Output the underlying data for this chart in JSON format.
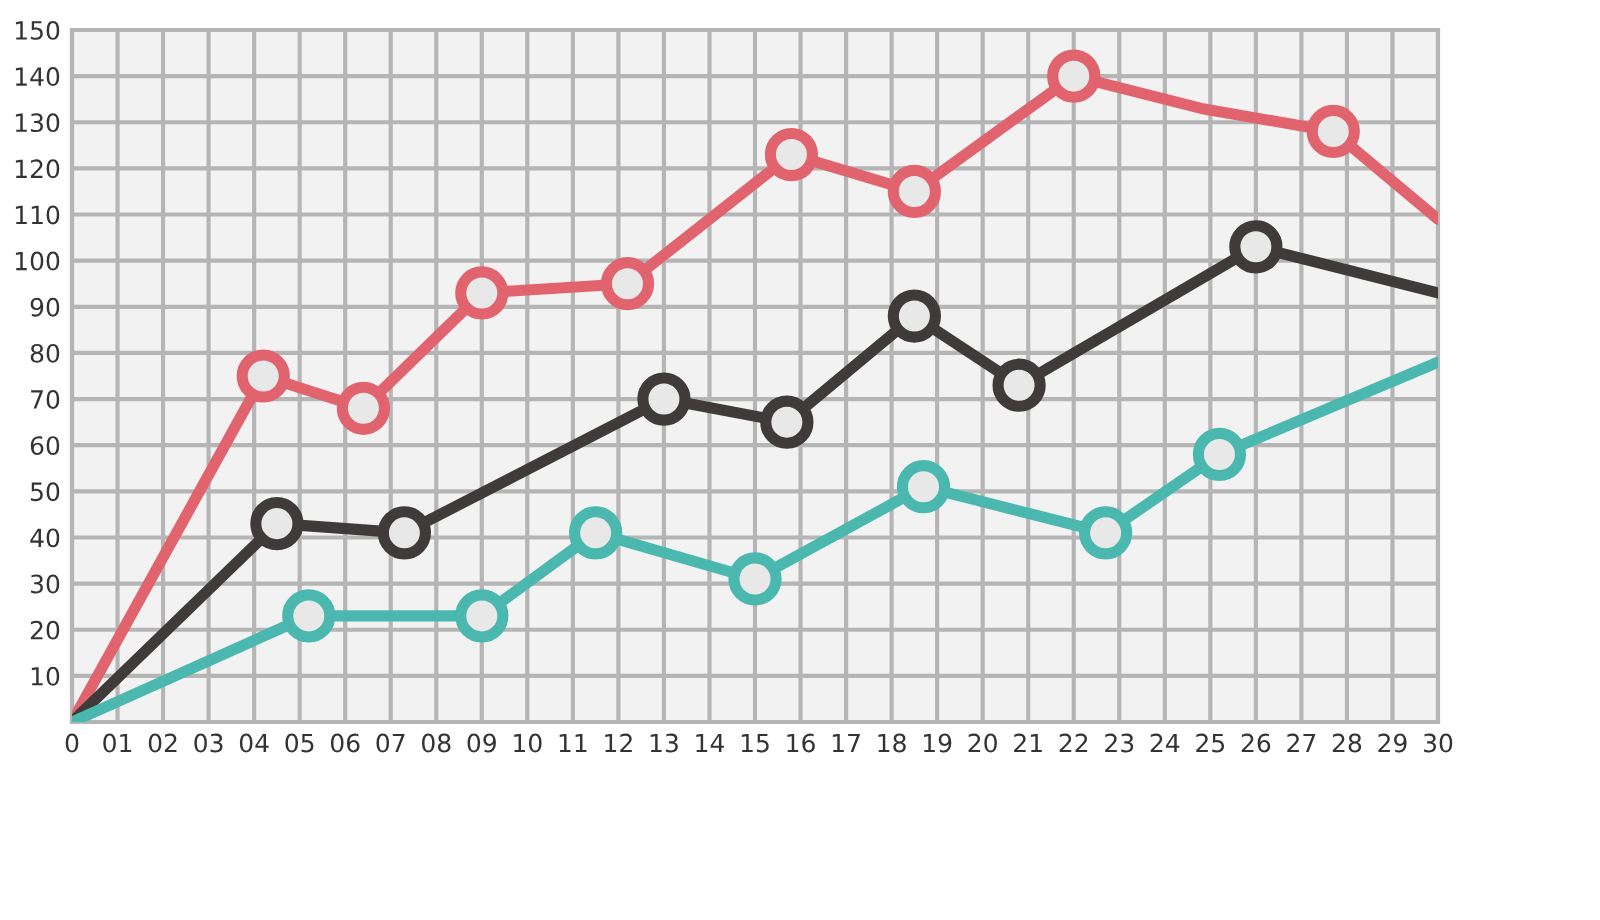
{
  "chart_data": {
    "type": "line",
    "xlim": [
      0,
      30
    ],
    "ylim": [
      0,
      150
    ],
    "xticks": [
      {
        "value": 0,
        "label": "0"
      },
      {
        "value": 1,
        "label": "01"
      },
      {
        "value": 2,
        "label": "02"
      },
      {
        "value": 3,
        "label": "03"
      },
      {
        "value": 4,
        "label": "04"
      },
      {
        "value": 5,
        "label": "05"
      },
      {
        "value": 6,
        "label": "06"
      },
      {
        "value": 7,
        "label": "07"
      },
      {
        "value": 8,
        "label": "08"
      },
      {
        "value": 9,
        "label": "09"
      },
      10,
      11,
      12,
      13,
      14,
      15,
      16,
      17,
      18,
      19,
      20,
      21,
      22,
      23,
      24,
      25,
      26,
      27,
      28,
      29,
      30
    ],
    "yticks": [
      10,
      20,
      30,
      40,
      50,
      60,
      70,
      80,
      90,
      100,
      110,
      120,
      130,
      140,
      150
    ],
    "grid": true,
    "line_style": "solid",
    "marker": "none",
    "series": [
      {
        "color": "#e0636e",
        "x": [
          0,
          4.2,
          6.4,
          9.0,
          12.2,
          15.8,
          18.5,
          22.0,
          24.8,
          27.7,
          30
        ],
        "values": [
          0,
          75,
          68,
          93,
          95,
          123,
          115,
          140,
          133,
          128,
          109
        ]
      },
      {
        "color": "#3f3b3a",
        "x": [
          0,
          4.5,
          7.3,
          13.0,
          15.7,
          18.5,
          20.8,
          26.0,
          30
        ],
        "values": [
          0,
          43,
          41,
          70,
          65,
          88,
          73,
          103,
          93
        ]
      },
      {
        "color": "#4bb8b0",
        "x": [
          0,
          5.2,
          9.0,
          11.5,
          15.0,
          18.7,
          22.7,
          25.2,
          30
        ],
        "values": [
          0,
          23,
          23,
          41,
          31,
          51,
          41,
          58,
          78
        ]
      },
      {
        "type": "scatter",
        "marker": "circle",
        "color": "#e0636e",
        "x": [
          4.2,
          6.4,
          9.0,
          12.2,
          15.8,
          18.5,
          22.0,
          27.7
        ],
        "values": [
          75,
          68,
          93,
          95,
          123,
          115,
          140,
          128
        ]
      },
      {
        "type": "scatter",
        "marker": "circle",
        "color": "#3f3b3a",
        "x": [
          4.5,
          7.3,
          13.0,
          15.7,
          18.5,
          20.8,
          26.0
        ],
        "values": [
          43,
          41,
          70,
          65,
          88,
          73,
          103
        ]
      },
      {
        "type": "scatter",
        "marker": "circle",
        "color": "#4bb8b0",
        "x": [
          5.2,
          9.0,
          11.5,
          15.0,
          18.7,
          22.7,
          25.2
        ],
        "values": [
          23,
          23,
          41,
          31,
          51,
          41,
          58
        ]
      }
    ]
  }
}
